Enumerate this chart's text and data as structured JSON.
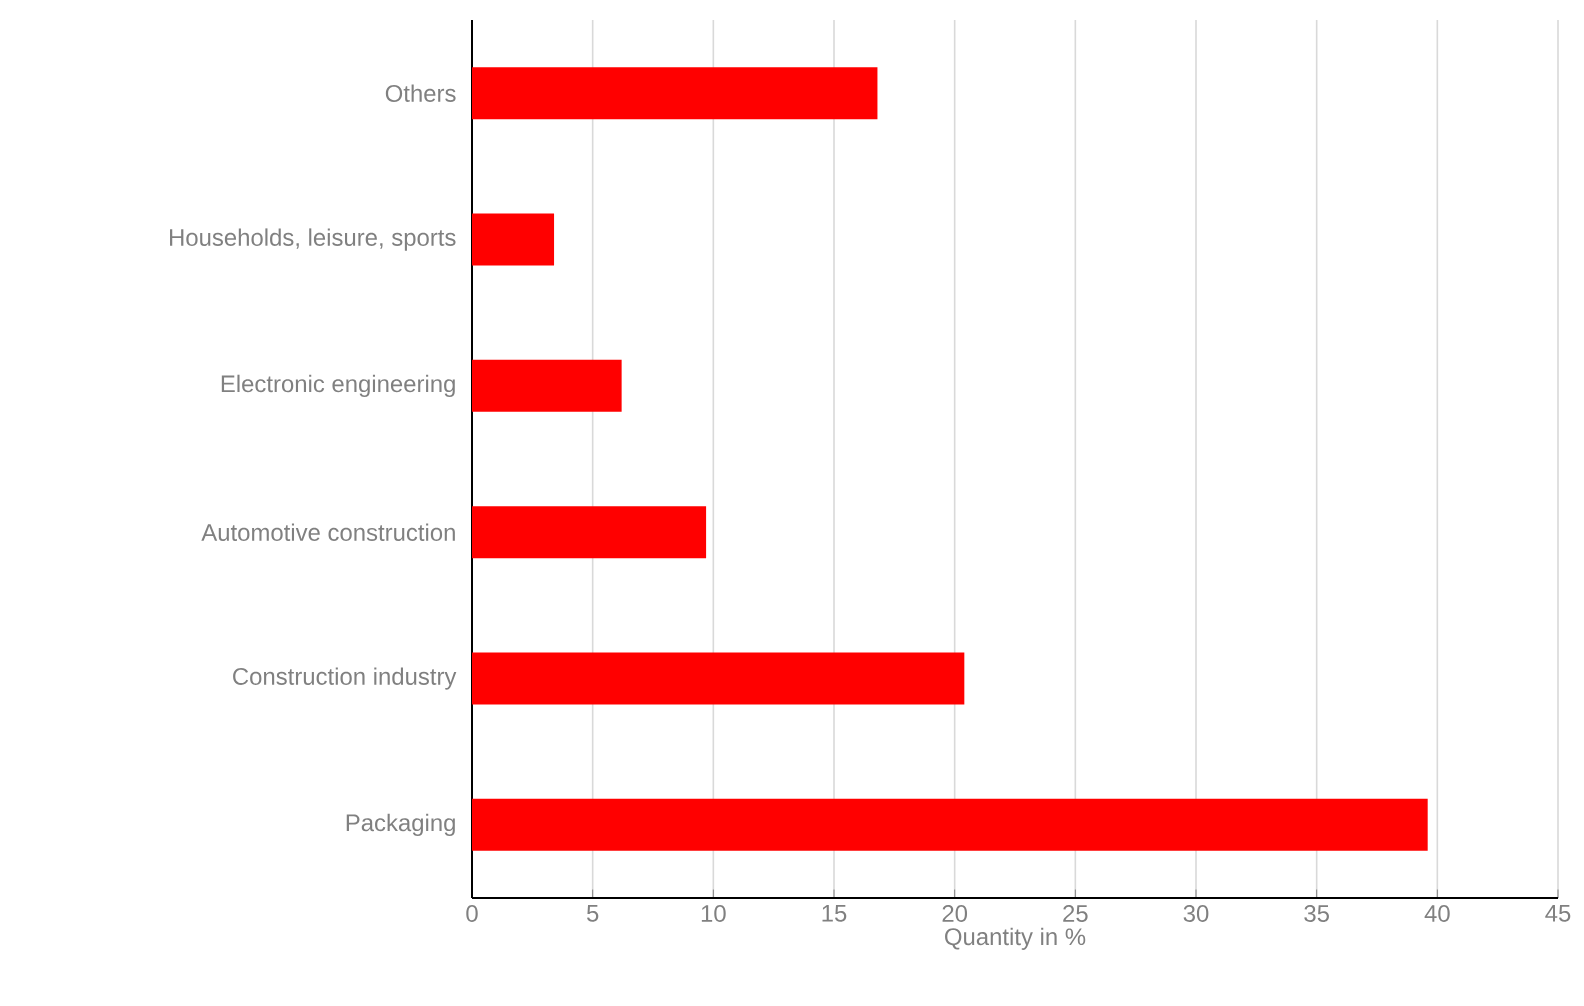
{
  "chart_data": {
    "type": "bar",
    "orientation": "horizontal",
    "xlabel": "Quantity in %",
    "categories": [
      "Others",
      "Households, leisure, sports",
      "Electronic engineering",
      "Automotive construction",
      "Construction industry",
      "Packaging"
    ],
    "values": [
      16.8,
      3.4,
      6.2,
      9.7,
      20.4,
      39.6
    ],
    "color": "#ff0000",
    "xlim": [
      0,
      45
    ],
    "xticks": [
      0,
      5,
      10,
      15,
      20,
      25,
      30,
      35,
      40,
      45
    ],
    "grid": "x"
  }
}
